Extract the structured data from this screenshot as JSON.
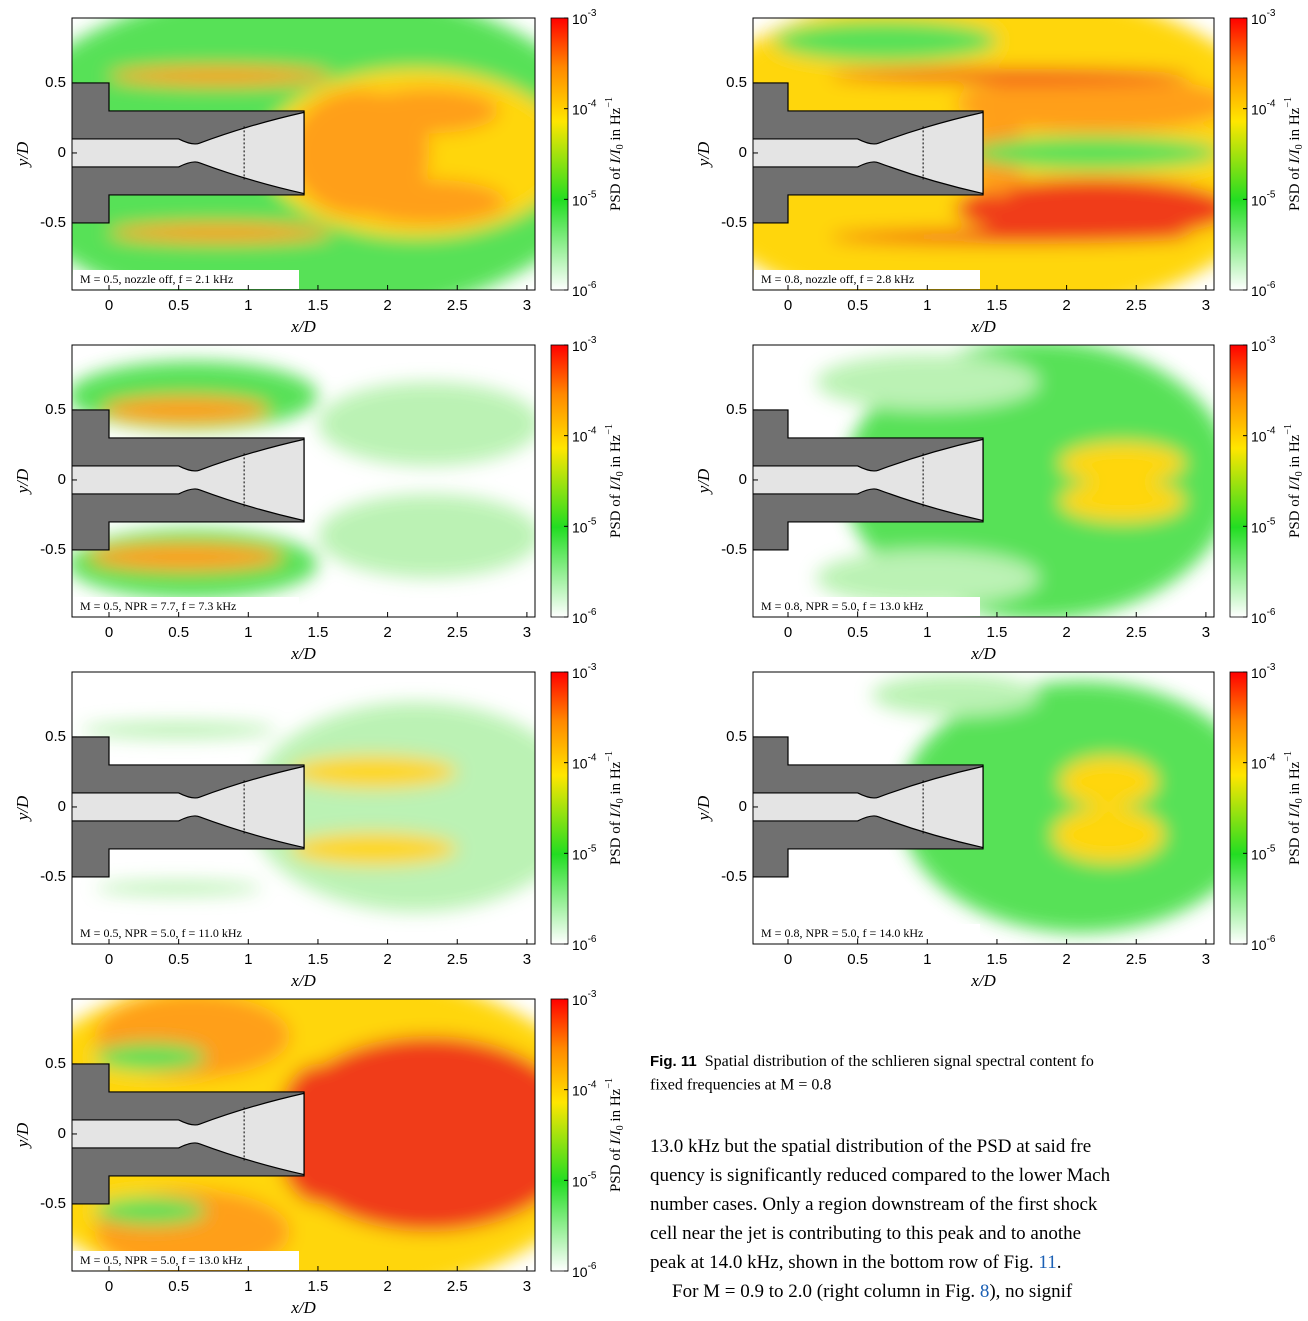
{
  "panels": [
    {
      "annotation": "M = 0.5, nozzle off, f = 2.1 kHz"
    },
    {
      "annotation": "M = 0.5, NPR = 7.7, f = 7.3 kHz"
    },
    {
      "annotation": "M = 0.5, NPR = 5.0, f = 11.0 kHz"
    },
    {
      "annotation": "M = 0.5, NPR = 5.0, f = 13.0 kHz"
    },
    {
      "annotation": "M = 0.8, nozzle off, f = 2.8 kHz"
    },
    {
      "annotation": "M = 0.8, NPR = 5.0, f = 13.0 kHz"
    },
    {
      "annotation": "M = 0.8, NPR = 5.0, f = 14.0 kHz"
    }
  ],
  "axes": {
    "xticks": [
      "0",
      "0.5",
      "1",
      "1.5",
      "2",
      "2.5",
      "3"
    ],
    "yticks": [
      "0.5",
      "0",
      "-0.5"
    ],
    "xlabel": "x/D",
    "ylabel": "y/D"
  },
  "colorbar": {
    "ticks": [
      {
        "base": "10",
        "exponent": "-3"
      },
      {
        "base": "10",
        "exponent": "-4"
      },
      {
        "base": "10",
        "exponent": "-5"
      },
      {
        "base": "10",
        "exponent": "-6"
      }
    ],
    "label": [
      "PSD of ",
      "I/I",
      "0",
      " in Hz",
      "−1"
    ]
  },
  "caption": {
    "label": "Fig. 11",
    "lines": [
      "Spatial distribution of the schlieren signal spectral content fo",
      "fixed frequencies at M = 0.8"
    ]
  },
  "body": {
    "lines": [
      [
        "13.0 kHz but the spatial distribution of the PSD at said fre"
      ],
      [
        "quency is significantly reduced compared to the lower Mach"
      ],
      [
        "number cases. Only a region downstream of the first shock"
      ],
      [
        "cell near the jet is contributing to this peak and to anothe"
      ],
      [
        "peak at 14.0 kHz, shown in the bottom row of Fig. ",
        "11",
        "."
      ],
      [
        "For M = 0.9 to 2.0 (right column in Fig. ",
        "8",
        "), no signif"
      ]
    ]
  }
}
